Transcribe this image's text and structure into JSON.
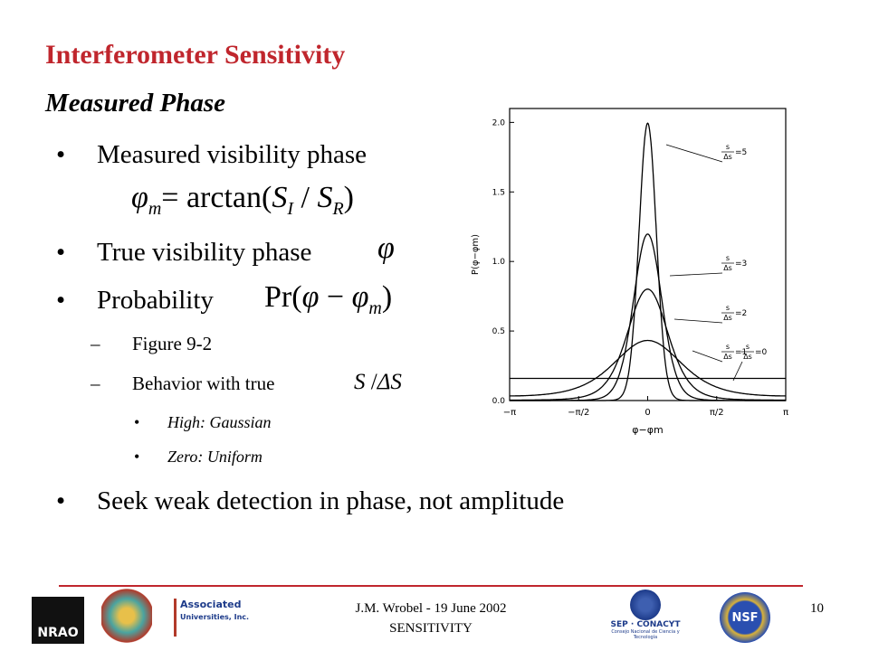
{
  "slide": {
    "title": "Interferometer Sensitivity",
    "subtitle": "Measured Phase",
    "bullet": "•",
    "dash": "–",
    "bullets": [
      "Measured visibility phase",
      "True visibility phase",
      "Probability"
    ],
    "formula": {
      "phi": "φ",
      "sub_m": "m",
      "eq": "= arctan(",
      "S": "S",
      "sub_I": "I",
      "slash": " / ",
      "sub_R": "R",
      "close": ")"
    },
    "prob": {
      "pr": "Pr(",
      "phi": "φ",
      "minus": " − ",
      "close": ")"
    },
    "sub_bullets": [
      "Figure 9-2",
      "Behavior with true"
    ],
    "snr": {
      "S": "S",
      "slash": " /",
      "dS": "ΔS"
    },
    "sub_sub_bullets": [
      "High: Gaussian",
      "Zero: Uniform"
    ],
    "last_bullet": "Seek weak detection in phase, not amplitude",
    "footer": {
      "line1": "J.M. Wrobel - 19 June 2002",
      "line2": "SENSITIVITY",
      "page": "10"
    },
    "logos": {
      "nrao": "NRAO",
      "aui1": "Associated",
      "aui2": "Universities, Inc.",
      "conacyt": "SEP · CONACYT",
      "conacyt2": "Consejo Nacional de Ciencia y Tecnología",
      "nsf": "NSF"
    }
  },
  "chart_data": {
    "type": "phase-probability",
    "xlabel": "φ−φm",
    "ylabel": "P(φ−φm)",
    "xlim": [
      -3.14159,
      3.14159
    ],
    "ylim": [
      0,
      2.1
    ],
    "xticks": [
      {
        "value": -3.14159,
        "label": "−π"
      },
      {
        "value": -1.5708,
        "label": "−π/2"
      },
      0,
      {
        "value": 1.5708,
        "label": "π/2"
      },
      {
        "value": 3.14159,
        "label": "π"
      }
    ],
    "yticks": [
      {
        "value": 0,
        "label": "0.0"
      },
      {
        "value": 0.5,
        "label": "0.5"
      },
      {
        "value": 1,
        "label": "1.0"
      },
      {
        "value": 1.5,
        "label": "1.5"
      },
      {
        "value": 2,
        "label": "2.0"
      }
    ],
    "curve_num": "s",
    "curve_den": "Δs",
    "series": [
      {
        "s": 5,
        "label": "=5"
      },
      {
        "s": 3,
        "label": "=3"
      },
      {
        "s": 2,
        "label": "=2"
      },
      {
        "s": 1,
        "label": "=1"
      },
      {
        "s": 0,
        "label": "=0"
      }
    ],
    "color": "#000000"
  }
}
